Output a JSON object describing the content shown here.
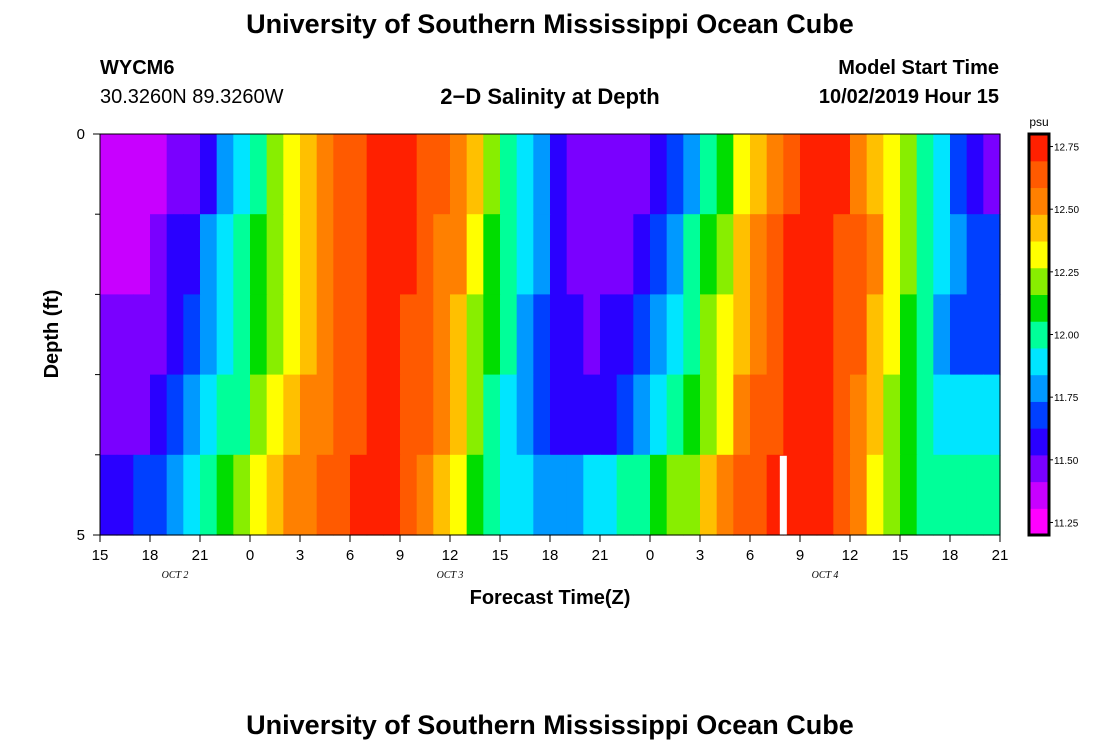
{
  "header": {
    "title": "University of Southern Mississippi Ocean Cube",
    "station": "WYCM6",
    "coords": "30.3260N 89.3260W",
    "plot_title": "2−D Salinity at Depth",
    "model_label": "Model Start Time",
    "model_time": "10/02/2019 Hour 15"
  },
  "footer": {
    "title": "University of Southern Mississippi Ocean Cube"
  },
  "colors": {
    "scale": [
      "#ff00ff",
      "#c800ff",
      "#7a00ff",
      "#2a00ff",
      "#0040ff",
      "#0099ff",
      "#00e5ff",
      "#00ff99",
      "#00dd00",
      "#88ee00",
      "#ffff00",
      "#ffc000",
      "#ff8000",
      "#ff5a00",
      "#ff2000"
    ],
    "marker": "#ffffff"
  },
  "chart_data": {
    "type": "heatmap",
    "xlabel": "Forecast Time(Z)",
    "ylabel": "Depth (ft)",
    "x_tick_labels": [
      "15",
      "18",
      "21",
      "0",
      "3",
      "6",
      "9",
      "12",
      "15",
      "18",
      "21",
      "0",
      "3",
      "6",
      "9",
      "12",
      "15",
      "18",
      "21"
    ],
    "x_hours_range": [
      0,
      54
    ],
    "date_labels": [
      {
        "label": "OCT 2",
        "hour": 4.5
      },
      {
        "label": "OCT 3",
        "hour": 21
      },
      {
        "label": "OCT 4",
        "hour": 43.5
      }
    ],
    "y_tick_labels": [
      "0",
      "5"
    ],
    "ylim": [
      0,
      5
    ],
    "depth_bands": 5,
    "colorbar": {
      "unit": "psu",
      "range": [
        11.2,
        12.8
      ],
      "ticks": [
        "12.75",
        "12.50",
        "12.25",
        "12.00",
        "11.75",
        "11.50",
        "11.25"
      ]
    },
    "marker_hour": 41,
    "columns_per_band": 54,
    "band_values": [
      [
        11.33,
        11.33,
        11.33,
        11.35,
        11.42,
        11.48,
        11.62,
        11.78,
        11.9,
        12.02,
        12.18,
        12.32,
        12.42,
        12.52,
        12.6,
        12.66,
        12.7,
        12.71,
        12.7,
        12.69,
        12.64,
        12.55,
        12.38,
        12.22,
        12.03,
        11.88,
        11.76,
        11.62,
        11.5,
        11.44,
        11.42,
        11.42,
        11.45,
        11.52,
        11.68,
        11.82,
        11.95,
        12.1,
        12.28,
        12.42,
        12.55,
        12.66,
        12.72,
        12.74,
        12.7,
        12.58,
        12.45,
        12.3,
        12.18,
        12.02,
        11.86,
        11.68,
        11.56,
        11.5
      ],
      [
        11.4,
        11.4,
        11.41,
        11.44,
        11.52,
        11.62,
        11.74,
        11.85,
        11.95,
        12.06,
        12.2,
        12.34,
        12.45,
        12.55,
        12.62,
        12.67,
        12.7,
        12.71,
        12.7,
        12.68,
        12.58,
        12.48,
        12.32,
        12.15,
        12.0,
        11.85,
        11.75,
        11.6,
        11.5,
        11.46,
        11.46,
        11.5,
        11.58,
        11.68,
        11.82,
        11.96,
        12.08,
        12.22,
        12.38,
        12.52,
        12.63,
        12.7,
        12.73,
        12.73,
        12.68,
        12.6,
        12.48,
        12.34,
        12.2,
        12.05,
        11.9,
        11.75,
        11.68,
        11.65
      ],
      [
        11.42,
        11.42,
        11.43,
        11.47,
        11.57,
        11.67,
        11.78,
        11.88,
        11.98,
        12.1,
        12.22,
        12.35,
        12.47,
        12.57,
        12.63,
        12.68,
        12.7,
        12.7,
        12.69,
        12.65,
        12.54,
        12.42,
        12.25,
        12.1,
        11.96,
        11.82,
        11.72,
        11.6,
        11.52,
        11.5,
        11.52,
        11.58,
        11.68,
        11.78,
        11.92,
        12.04,
        12.16,
        12.3,
        12.44,
        12.56,
        12.66,
        12.72,
        12.74,
        12.73,
        12.68,
        12.6,
        12.46,
        12.3,
        12.14,
        11.98,
        11.82,
        11.72,
        11.7,
        11.7
      ],
      [
        11.45,
        11.45,
        11.48,
        11.54,
        11.65,
        11.75,
        11.85,
        11.95,
        12.05,
        12.16,
        12.28,
        12.4,
        12.5,
        12.58,
        12.64,
        12.68,
        12.7,
        12.7,
        12.68,
        12.62,
        12.5,
        12.38,
        12.2,
        12.05,
        11.92,
        11.8,
        11.7,
        11.62,
        11.58,
        11.58,
        11.62,
        11.72,
        11.82,
        11.92,
        12.02,
        12.12,
        12.24,
        12.36,
        12.48,
        12.6,
        12.68,
        12.74,
        12.76,
        12.74,
        12.66,
        12.54,
        12.4,
        12.22,
        12.08,
        11.98,
        11.92,
        11.9,
        11.9,
        11.9
      ],
      [
        11.58,
        11.6,
        11.64,
        11.72,
        11.82,
        11.92,
        12.0,
        12.1,
        12.2,
        12.3,
        12.4,
        12.5,
        12.58,
        12.64,
        12.68,
        12.7,
        12.71,
        12.7,
        12.66,
        12.58,
        12.44,
        12.3,
        12.15,
        12.02,
        11.92,
        11.85,
        11.8,
        11.78,
        11.8,
        11.84,
        11.9,
        11.96,
        12.02,
        12.08,
        12.16,
        12.26,
        12.38,
        12.5,
        12.6,
        12.68,
        12.73,
        12.76,
        12.76,
        12.72,
        12.62,
        12.48,
        12.32,
        12.18,
        12.08,
        12.02,
        11.98,
        11.96,
        11.96,
        11.96
      ]
    ]
  }
}
